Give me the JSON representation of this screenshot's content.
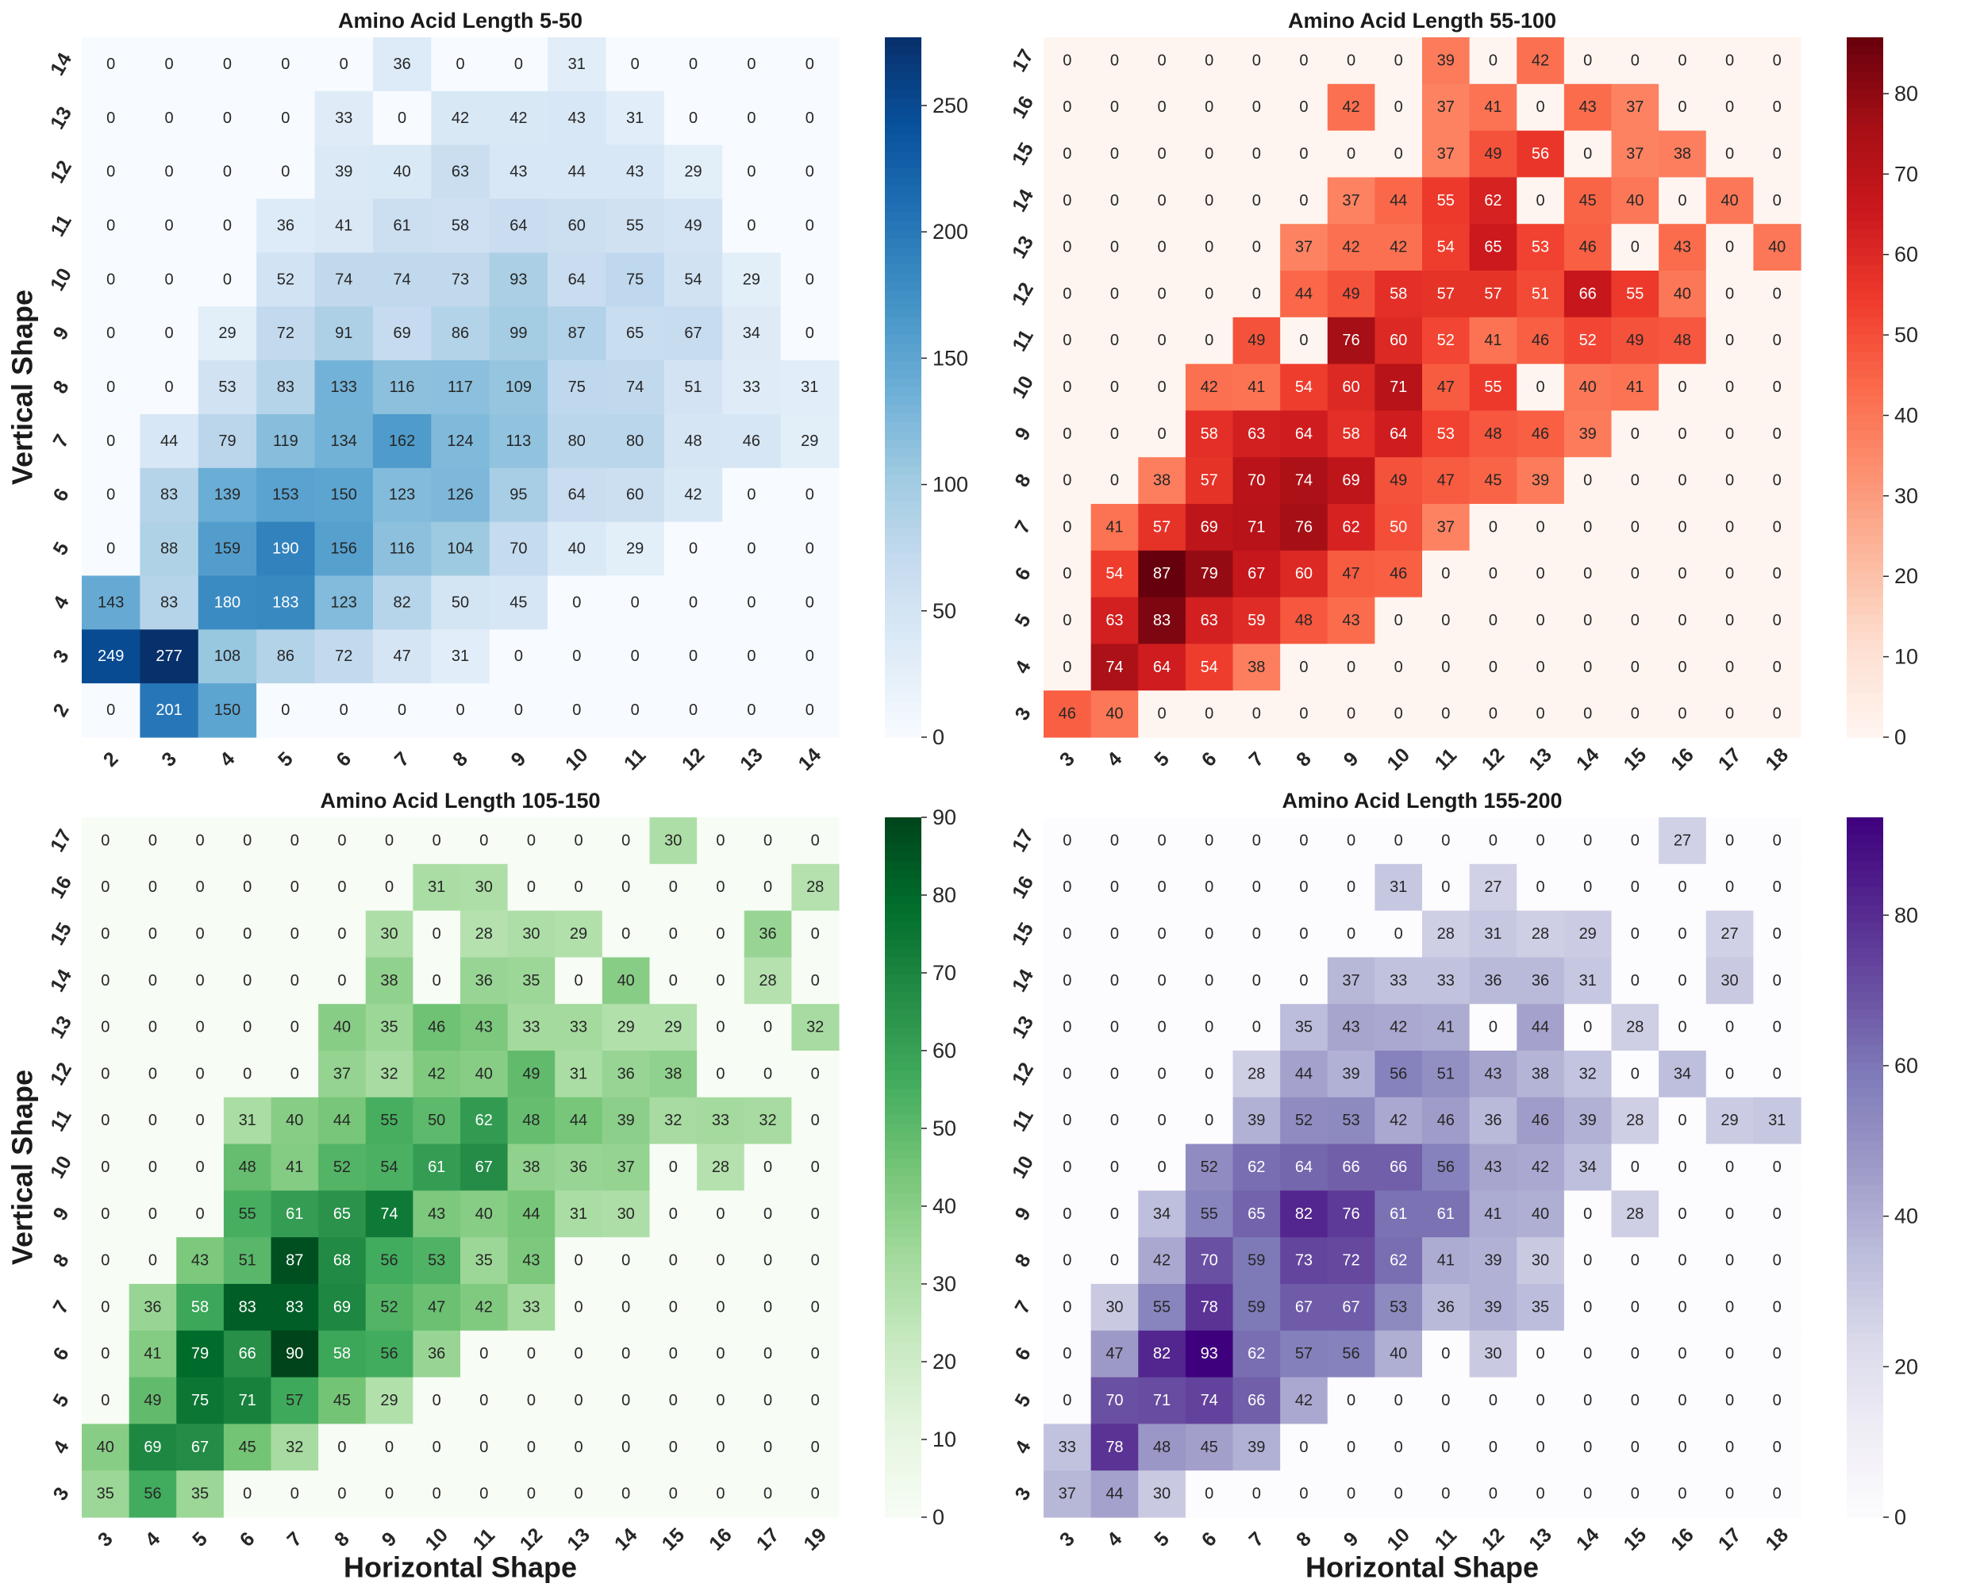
{
  "figure": {
    "shared_ylabel": "Vertical Shape",
    "shared_xlabel": "Horizontal Shape"
  },
  "chart_data": [
    {
      "type": "heatmap",
      "title": "Amino Acid Length 5-50",
      "colormap": "Blues",
      "colors": [
        "#f7fbff",
        "#deebf7",
        "#c6dbef",
        "#9ecae1",
        "#6baed6",
        "#4292c6",
        "#2171b5",
        "#08519c",
        "#08306b"
      ],
      "vmin": 0,
      "vmax": 277,
      "colorbar_ticks": [
        0,
        50,
        100,
        150,
        200,
        250
      ],
      "x_labels": [
        "2",
        "3",
        "4",
        "5",
        "6",
        "7",
        "8",
        "9",
        "10",
        "11",
        "12",
        "13",
        "14"
      ],
      "y_labels": [
        "14",
        "13",
        "12",
        "11",
        "10",
        "9",
        "8",
        "7",
        "6",
        "5",
        "4",
        "3",
        "2"
      ],
      "xlabel": "",
      "ylabel": "Vertical Shape",
      "values": [
        [
          0,
          0,
          0,
          0,
          0,
          36,
          0,
          0,
          31,
          0,
          0,
          0,
          0
        ],
        [
          0,
          0,
          0,
          0,
          33,
          0,
          42,
          42,
          43,
          31,
          0,
          0,
          0
        ],
        [
          0,
          0,
          0,
          0,
          39,
          40,
          63,
          43,
          44,
          43,
          29,
          0,
          0
        ],
        [
          0,
          0,
          0,
          36,
          41,
          61,
          58,
          64,
          60,
          55,
          49,
          0,
          0
        ],
        [
          0,
          0,
          0,
          52,
          74,
          74,
          73,
          93,
          64,
          75,
          54,
          29,
          0
        ],
        [
          0,
          0,
          29,
          72,
          91,
          69,
          86,
          99,
          87,
          65,
          67,
          34,
          0
        ],
        [
          0,
          0,
          53,
          83,
          133,
          116,
          117,
          109,
          75,
          74,
          51,
          33,
          31
        ],
        [
          0,
          44,
          79,
          119,
          134,
          162,
          124,
          113,
          80,
          80,
          48,
          46,
          29
        ],
        [
          0,
          83,
          139,
          153,
          150,
          123,
          126,
          95,
          64,
          60,
          42,
          0,
          0
        ],
        [
          0,
          88,
          159,
          190,
          156,
          116,
          104,
          70,
          40,
          29,
          0,
          0,
          0
        ],
        [
          143,
          83,
          180,
          183,
          123,
          82,
          50,
          45,
          0,
          0,
          0,
          0,
          0
        ],
        [
          249,
          277,
          108,
          86,
          72,
          47,
          31,
          0,
          0,
          0,
          0,
          0,
          0
        ],
        [
          0,
          201,
          150,
          0,
          0,
          0,
          0,
          0,
          0,
          0,
          0,
          0,
          0
        ]
      ]
    },
    {
      "type": "heatmap",
      "title": "Amino Acid Length 55-100",
      "colormap": "Reds",
      "colors": [
        "#fff5f0",
        "#fee0d2",
        "#fcbba1",
        "#fc9272",
        "#fb6a4a",
        "#ef3b2c",
        "#cb181d",
        "#a50f15",
        "#67000d"
      ],
      "vmin": 0,
      "vmax": 87,
      "colorbar_ticks": [
        0,
        10,
        20,
        30,
        40,
        50,
        60,
        70,
        80
      ],
      "x_labels": [
        "3",
        "4",
        "5",
        "6",
        "7",
        "8",
        "9",
        "10",
        "11",
        "12",
        "13",
        "14",
        "15",
        "16",
        "17",
        "18"
      ],
      "y_labels": [
        "17",
        "16",
        "15",
        "14",
        "13",
        "12",
        "11",
        "10",
        "9",
        "8",
        "7",
        "6",
        "5",
        "4",
        "3"
      ],
      "xlabel": "",
      "ylabel": "",
      "values": [
        [
          0,
          0,
          0,
          0,
          0,
          0,
          0,
          0,
          39,
          0,
          42,
          0,
          0,
          0,
          0,
          0
        ],
        [
          0,
          0,
          0,
          0,
          0,
          0,
          42,
          0,
          37,
          41,
          0,
          43,
          37,
          0,
          0,
          0
        ],
        [
          0,
          0,
          0,
          0,
          0,
          0,
          0,
          0,
          37,
          49,
          56,
          0,
          37,
          38,
          0,
          0
        ],
        [
          0,
          0,
          0,
          0,
          0,
          0,
          37,
          44,
          55,
          62,
          0,
          45,
          40,
          0,
          40,
          0
        ],
        [
          0,
          0,
          0,
          0,
          0,
          37,
          42,
          42,
          54,
          65,
          53,
          46,
          0,
          43,
          0,
          40
        ],
        [
          0,
          0,
          0,
          0,
          0,
          44,
          49,
          58,
          57,
          57,
          51,
          66,
          55,
          40,
          0,
          0
        ],
        [
          0,
          0,
          0,
          0,
          49,
          0,
          76,
          60,
          52,
          41,
          46,
          52,
          49,
          48,
          0,
          0
        ],
        [
          0,
          0,
          0,
          42,
          41,
          54,
          60,
          71,
          47,
          55,
          0,
          40,
          41,
          0,
          0,
          0
        ],
        [
          0,
          0,
          0,
          58,
          63,
          64,
          58,
          64,
          53,
          48,
          46,
          39,
          0,
          0,
          0,
          0
        ],
        [
          0,
          0,
          38,
          57,
          70,
          74,
          69,
          49,
          47,
          45,
          39,
          0,
          0,
          0,
          0,
          0
        ],
        [
          0,
          41,
          57,
          69,
          71,
          76,
          62,
          50,
          37,
          0,
          0,
          0,
          0,
          0,
          0,
          0
        ],
        [
          0,
          54,
          87,
          79,
          67,
          60,
          47,
          46,
          0,
          0,
          0,
          0,
          0,
          0,
          0,
          0
        ],
        [
          0,
          63,
          83,
          63,
          59,
          48,
          43,
          0,
          0,
          0,
          0,
          0,
          0,
          0,
          0,
          0
        ],
        [
          0,
          74,
          64,
          54,
          38,
          0,
          0,
          0,
          0,
          0,
          0,
          0,
          0,
          0,
          0,
          0
        ],
        [
          46,
          40,
          0,
          0,
          0,
          0,
          0,
          0,
          0,
          0,
          0,
          0,
          0,
          0,
          0,
          0
        ]
      ]
    },
    {
      "type": "heatmap",
      "title": "Amino Acid Length 105-150",
      "colormap": "Greens",
      "colors": [
        "#f7fcf5",
        "#e5f5e0",
        "#c7e9c0",
        "#a1d99b",
        "#74c476",
        "#41ab5d",
        "#238b45",
        "#006d2c",
        "#00441b"
      ],
      "vmin": 0,
      "vmax": 90,
      "colorbar_ticks": [
        0,
        10,
        20,
        30,
        40,
        50,
        60,
        70,
        80,
        90
      ],
      "x_labels": [
        "3",
        "4",
        "5",
        "6",
        "7",
        "8",
        "9",
        "10",
        "11",
        "12",
        "13",
        "14",
        "15",
        "16",
        "17",
        "19"
      ],
      "y_labels": [
        "17",
        "16",
        "15",
        "14",
        "13",
        "12",
        "11",
        "10",
        "9",
        "8",
        "7",
        "6",
        "5",
        "4",
        "3"
      ],
      "xlabel": "Horizontal Shape",
      "ylabel": "Vertical Shape",
      "values": [
        [
          0,
          0,
          0,
          0,
          0,
          0,
          0,
          0,
          0,
          0,
          0,
          0,
          30,
          0,
          0,
          0
        ],
        [
          0,
          0,
          0,
          0,
          0,
          0,
          0,
          31,
          30,
          0,
          0,
          0,
          0,
          0,
          0,
          28
        ],
        [
          0,
          0,
          0,
          0,
          0,
          0,
          30,
          0,
          28,
          30,
          29,
          0,
          0,
          0,
          36,
          0
        ],
        [
          0,
          0,
          0,
          0,
          0,
          0,
          38,
          0,
          36,
          35,
          0,
          40,
          0,
          0,
          28,
          0
        ],
        [
          0,
          0,
          0,
          0,
          0,
          40,
          35,
          46,
          43,
          33,
          33,
          29,
          29,
          0,
          0,
          32
        ],
        [
          0,
          0,
          0,
          0,
          0,
          37,
          32,
          42,
          40,
          49,
          31,
          36,
          38,
          0,
          0,
          0
        ],
        [
          0,
          0,
          0,
          31,
          40,
          44,
          55,
          50,
          62,
          48,
          44,
          39,
          32,
          33,
          32,
          0
        ],
        [
          0,
          0,
          0,
          48,
          41,
          52,
          54,
          61,
          67,
          38,
          36,
          37,
          0,
          28,
          0,
          0
        ],
        [
          0,
          0,
          0,
          55,
          61,
          65,
          74,
          43,
          40,
          44,
          31,
          30,
          0,
          0,
          0,
          0
        ],
        [
          0,
          0,
          43,
          51,
          87,
          68,
          56,
          53,
          35,
          43,
          0,
          0,
          0,
          0,
          0,
          0
        ],
        [
          0,
          36,
          58,
          83,
          83,
          69,
          52,
          47,
          42,
          33,
          0,
          0,
          0,
          0,
          0,
          0
        ],
        [
          0,
          41,
          79,
          66,
          90,
          58,
          56,
          36,
          0,
          0,
          0,
          0,
          0,
          0,
          0,
          0
        ],
        [
          0,
          49,
          75,
          71,
          57,
          45,
          29,
          0,
          0,
          0,
          0,
          0,
          0,
          0,
          0,
          0
        ],
        [
          40,
          69,
          67,
          45,
          32,
          0,
          0,
          0,
          0,
          0,
          0,
          0,
          0,
          0,
          0,
          0
        ],
        [
          35,
          56,
          35,
          0,
          0,
          0,
          0,
          0,
          0,
          0,
          0,
          0,
          0,
          0,
          0,
          0
        ]
      ]
    },
    {
      "type": "heatmap",
      "title": "Amino Acid Length 155-200",
      "colormap": "Purples",
      "colors": [
        "#fcfbfd",
        "#efedf5",
        "#dadaeb",
        "#bcbddc",
        "#9e9ac8",
        "#807dba",
        "#6a51a3",
        "#54278f",
        "#3f007d"
      ],
      "vmin": 0,
      "vmax": 93,
      "colorbar_ticks": [
        0,
        20,
        40,
        60,
        80
      ],
      "x_labels": [
        "3",
        "4",
        "5",
        "6",
        "7",
        "8",
        "9",
        "10",
        "11",
        "12",
        "13",
        "14",
        "15",
        "16",
        "17",
        "18"
      ],
      "y_labels": [
        "17",
        "16",
        "15",
        "14",
        "13",
        "12",
        "11",
        "10",
        "9",
        "8",
        "7",
        "6",
        "5",
        "4",
        "3"
      ],
      "xlabel": "Horizontal Shape",
      "ylabel": "",
      "values": [
        [
          0,
          0,
          0,
          0,
          0,
          0,
          0,
          0,
          0,
          0,
          0,
          0,
          0,
          27,
          0,
          0
        ],
        [
          0,
          0,
          0,
          0,
          0,
          0,
          0,
          31,
          0,
          27,
          0,
          0,
          0,
          0,
          0,
          0
        ],
        [
          0,
          0,
          0,
          0,
          0,
          0,
          0,
          0,
          28,
          31,
          28,
          29,
          0,
          0,
          27,
          0
        ],
        [
          0,
          0,
          0,
          0,
          0,
          0,
          37,
          33,
          33,
          36,
          36,
          31,
          0,
          0,
          30,
          0
        ],
        [
          0,
          0,
          0,
          0,
          0,
          35,
          43,
          42,
          41,
          0,
          44,
          0,
          28,
          0,
          0,
          0
        ],
        [
          0,
          0,
          0,
          0,
          28,
          44,
          39,
          56,
          51,
          43,
          38,
          32,
          0,
          34,
          0,
          0
        ],
        [
          0,
          0,
          0,
          0,
          39,
          52,
          53,
          42,
          46,
          36,
          46,
          39,
          28,
          0,
          29,
          31
        ],
        [
          0,
          0,
          0,
          52,
          62,
          64,
          66,
          66,
          56,
          43,
          42,
          34,
          0,
          0,
          0,
          0
        ],
        [
          0,
          0,
          34,
          55,
          65,
          82,
          76,
          61,
          61,
          41,
          40,
          0,
          28,
          0,
          0,
          0
        ],
        [
          0,
          0,
          42,
          70,
          59,
          73,
          72,
          62,
          41,
          39,
          30,
          0,
          0,
          0,
          0,
          0
        ],
        [
          0,
          30,
          55,
          78,
          59,
          67,
          67,
          53,
          36,
          39,
          35,
          0,
          0,
          0,
          0,
          0
        ],
        [
          0,
          47,
          82,
          93,
          62,
          57,
          56,
          40,
          0,
          30,
          0,
          0,
          0,
          0,
          0,
          0
        ],
        [
          0,
          70,
          71,
          74,
          66,
          42,
          0,
          0,
          0,
          0,
          0,
          0,
          0,
          0,
          0,
          0
        ],
        [
          33,
          78,
          48,
          45,
          39,
          0,
          0,
          0,
          0,
          0,
          0,
          0,
          0,
          0,
          0,
          0
        ],
        [
          37,
          44,
          30,
          0,
          0,
          0,
          0,
          0,
          0,
          0,
          0,
          0,
          0,
          0,
          0,
          0
        ]
      ]
    }
  ]
}
